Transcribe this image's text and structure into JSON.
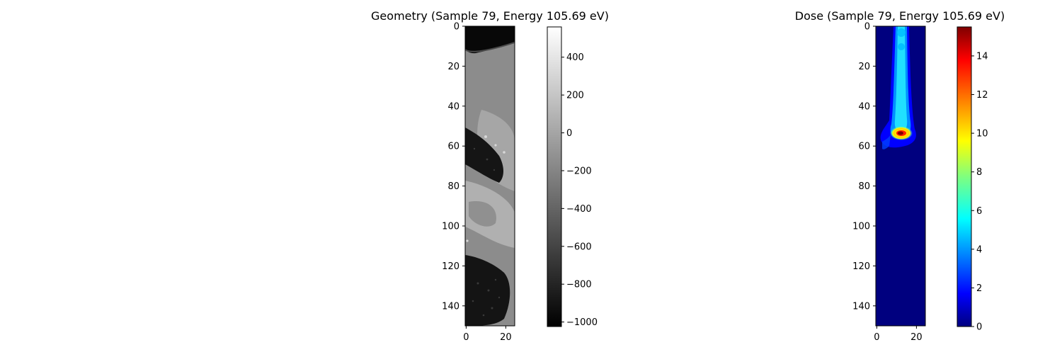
{
  "chart_data": [
    {
      "type": "heatmap",
      "title": "Geometry (Sample 79, Energy 105.69 eV)",
      "colormap": "gray",
      "x_range": [
        0,
        25
      ],
      "y_range": [
        0,
        150
      ],
      "x_ticks": [
        "0",
        "20"
      ],
      "y_ticks": [
        "0",
        "20",
        "40",
        "60",
        "80",
        "100",
        "120",
        "140"
      ],
      "colorbar": {
        "range": [
          -1024,
          560
        ],
        "ticks": [
          "400",
          "200",
          "0",
          "−200",
          "−400",
          "−600",
          "−800",
          "−1000"
        ]
      },
      "regions": [
        {
          "name": "air-top",
          "value": -1000
        },
        {
          "name": "soft-tissue",
          "value": 0
        },
        {
          "name": "lung-upper",
          "value": -850
        },
        {
          "name": "lung-lower",
          "value": -850
        },
        {
          "name": "bright-structure",
          "value": 150
        }
      ]
    },
    {
      "type": "heatmap",
      "title": "Dose (Sample 79, Energy 105.69 eV)",
      "colormap": "jet",
      "x_range": [
        0,
        25
      ],
      "y_range": [
        0,
        150
      ],
      "x_ticks": [
        "0",
        "20"
      ],
      "y_ticks": [
        "0",
        "20",
        "40",
        "60",
        "80",
        "100",
        "120",
        "140"
      ],
      "colorbar": {
        "range": [
          0,
          15.5
        ],
        "ticks": [
          "14",
          "12",
          "10",
          "8",
          "6",
          "4",
          "2",
          "0"
        ]
      },
      "peak": {
        "x": 12,
        "y": 54,
        "value": 15.5
      }
    }
  ]
}
